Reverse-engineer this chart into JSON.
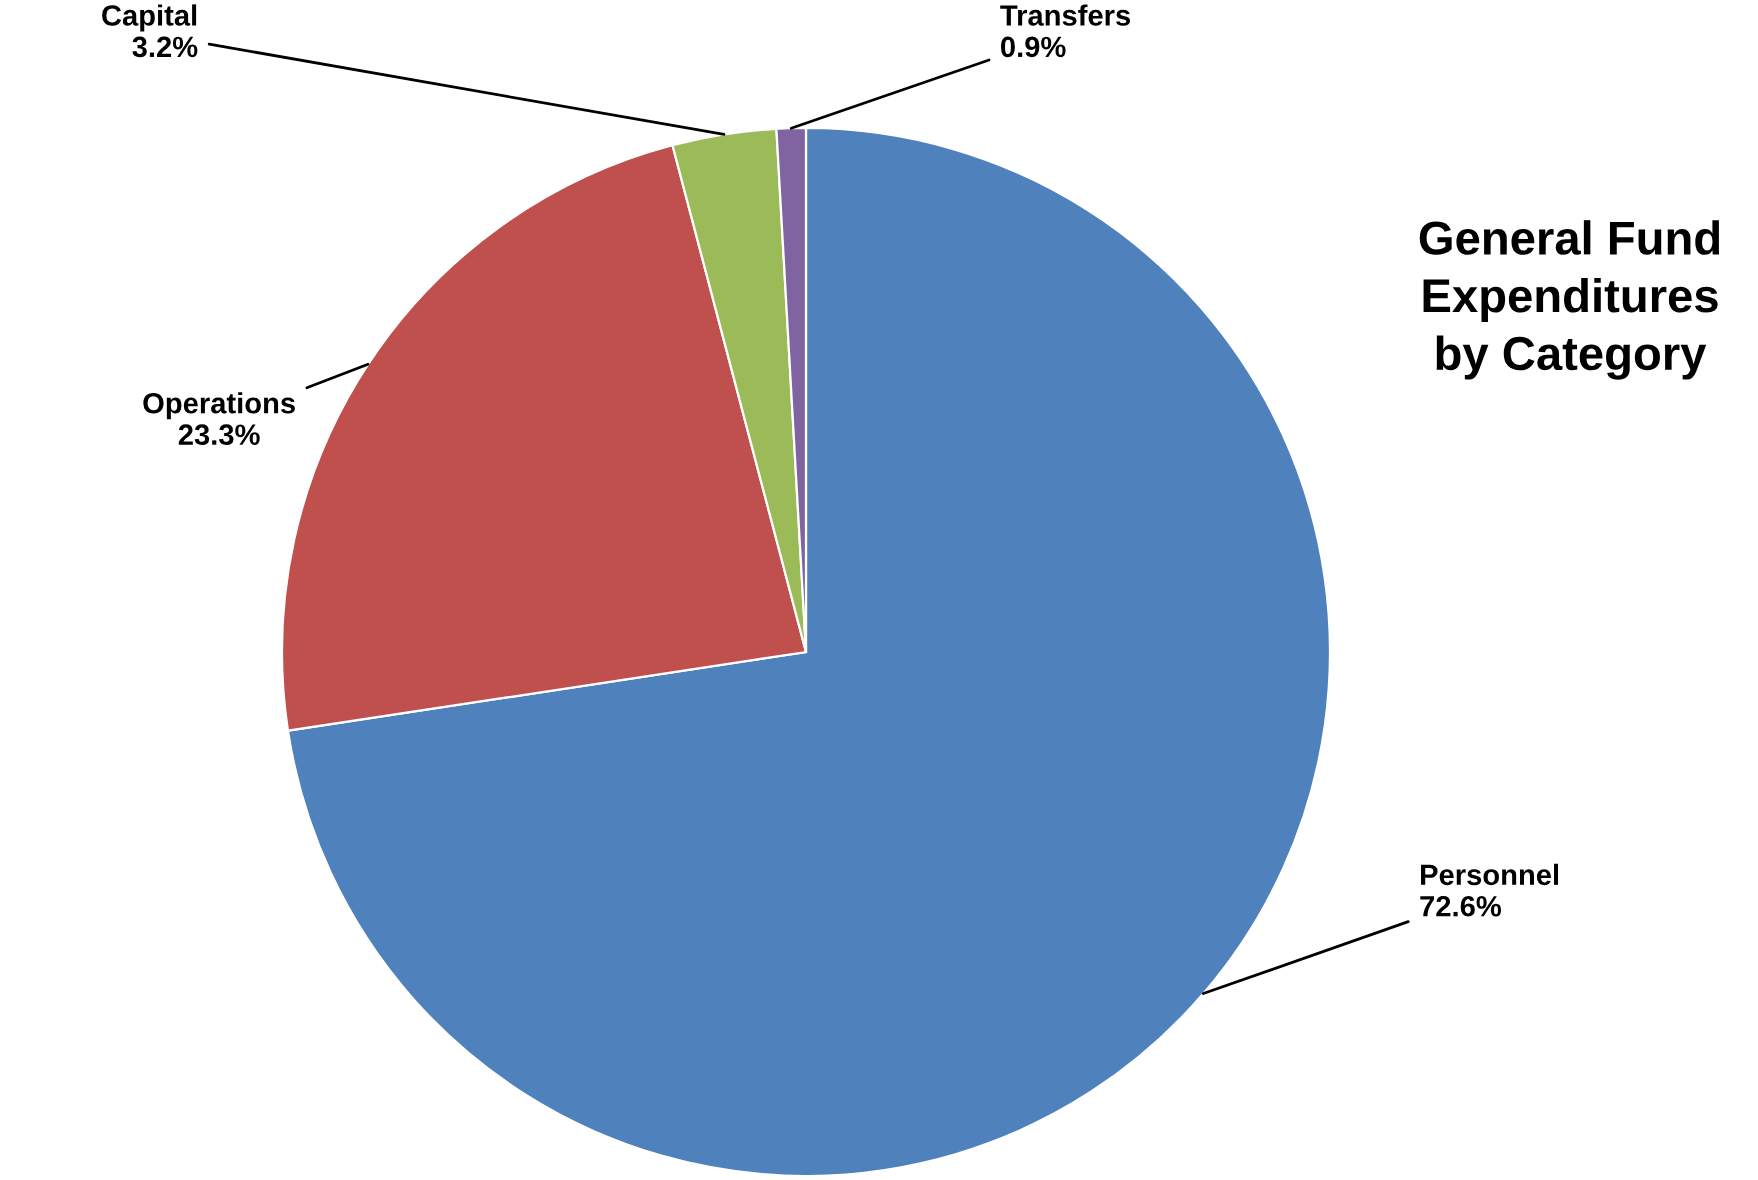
{
  "chart_data": {
    "type": "pie",
    "title": "General Fund\nExpenditures\nby Category",
    "categories": [
      "Personnel",
      "Operations",
      "Capital",
      "Transfers"
    ],
    "values": [
      72.6,
      23.3,
      3.2,
      0.9
    ],
    "value_labels": [
      "72.6%",
      "23.3%",
      "3.2%",
      "0.9%"
    ],
    "colors": [
      "#4f81bd",
      "#c0504d",
      "#9bbb59",
      "#8064a2"
    ],
    "legend": false
  }
}
